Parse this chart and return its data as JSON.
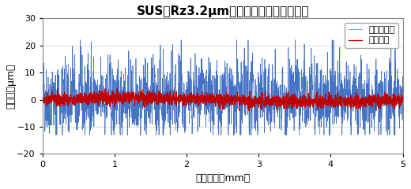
{
  "title": "SUS（Rz3.2μm）スキャニング計測結果",
  "xlabel": "移動距離［mm］",
  "ylabel": "計測値［μm］",
  "xlim": [
    0,
    5
  ],
  "ylim": [
    -20,
    30
  ],
  "yticks": [
    -20,
    -10,
    0,
    10,
    20,
    30
  ],
  "xticks": [
    0,
    1,
    2,
    3,
    4,
    5
  ],
  "legend_labels": [
    "従来センサ",
    "本センサ"
  ],
  "blue_color": "#4472C4",
  "red_color": "#C00000",
  "background_color": "#FFFFFF",
  "title_fontsize": 11,
  "axis_fontsize": 9,
  "legend_fontsize": 8,
  "n_points": 2000,
  "blue_amplitude": 6.5,
  "red_amplitude": 1.2,
  "seed": 42
}
